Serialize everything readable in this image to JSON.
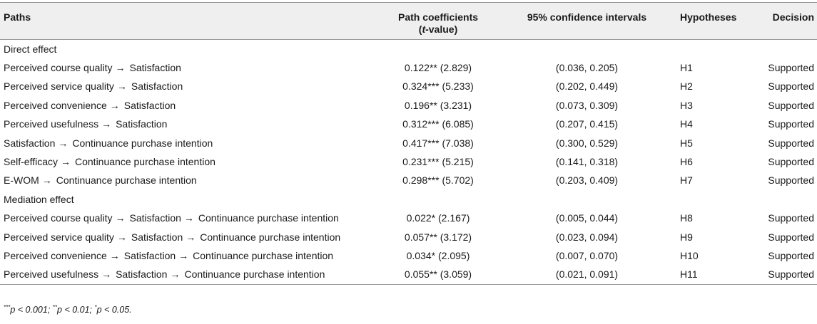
{
  "table": {
    "headers": {
      "paths": "Paths",
      "coef_line1": "Path coefficients",
      "coef_line2_open": "(",
      "coef_line2_t": "t",
      "coef_line2_rest": "-value)",
      "ci": "95% confidence intervals",
      "hypotheses": "Hypotheses",
      "decision": "Decision"
    },
    "arrow": "→",
    "sections": [
      {
        "label": "Direct effect",
        "rows": [
          {
            "path": [
              "Perceived course quality",
              "Satisfaction"
            ],
            "coef": "0.122** (2.829)",
            "ci": "(0.036, 0.205)",
            "hyp": "H1",
            "decision": "Supported"
          },
          {
            "path": [
              "Perceived service quality",
              "Satisfaction"
            ],
            "coef": "0.324*** (5.233)",
            "ci": "(0.202, 0.449)",
            "hyp": "H2",
            "decision": "Supported"
          },
          {
            "path": [
              "Perceived convenience",
              "Satisfaction"
            ],
            "coef": "0.196** (3.231)",
            "ci": "(0.073, 0.309)",
            "hyp": "H3",
            "decision": "Supported"
          },
          {
            "path": [
              "Perceived usefulness",
              "Satisfaction"
            ],
            "coef": "0.312*** (6.085)",
            "ci": "(0.207, 0.415)",
            "hyp": "H4",
            "decision": "Supported"
          },
          {
            "path": [
              "Satisfaction",
              "Continuance purchase intention"
            ],
            "coef": "0.417*** (7.038)",
            "ci": "(0.300, 0.529)",
            "hyp": "H5",
            "decision": "Supported"
          },
          {
            "path": [
              "Self-efficacy",
              "Continuance purchase intention"
            ],
            "coef": "0.231*** (5.215)",
            "ci": "(0.141, 0.318)",
            "hyp": "H6",
            "decision": "Supported"
          },
          {
            "path": [
              "E-WOM",
              "Continuance purchase intention"
            ],
            "coef": "0.298*** (5.702)",
            "ci": "(0.203, 0.409)",
            "hyp": "H7",
            "decision": "Supported"
          }
        ]
      },
      {
        "label": "Mediation effect",
        "rows": [
          {
            "path": [
              "Perceived course quality",
              "Satisfaction",
              "Continuance purchase intention"
            ],
            "coef": "0.022* (2.167)",
            "ci": "(0.005, 0.044)",
            "hyp": "H8",
            "decision": "Supported"
          },
          {
            "path": [
              "Perceived service quality",
              "Satisfaction",
              "Continuance purchase intention"
            ],
            "coef": "0.057** (3.172)",
            "ci": "(0.023, 0.094)",
            "hyp": "H9",
            "decision": "Supported"
          },
          {
            "path": [
              "Perceived convenience",
              "Satisfaction",
              "Continuance purchase intention"
            ],
            "coef": "0.034* (2.095)",
            "ci": "(0.007, 0.070)",
            "hyp": "H10",
            "decision": "Supported"
          },
          {
            "path": [
              "Perceived usefulness",
              "Satisfaction",
              "Continuance purchase intention"
            ],
            "coef": "0.055** (3.059)",
            "ci": "(0.021, 0.091)",
            "hyp": "H11",
            "decision": "Supported"
          }
        ]
      }
    ]
  },
  "footnote": {
    "items": [
      {
        "stars": "***",
        "p": "p",
        "rest": " < 0.001; "
      },
      {
        "stars": "**",
        "p": "p",
        "rest": " < 0.01; "
      },
      {
        "stars": "*",
        "p": "p",
        "rest": " < 0.05."
      }
    ]
  },
  "colors": {
    "header_bg": "#efefef",
    "rule": "#9a9a9a",
    "text": "#1a1a1a"
  }
}
